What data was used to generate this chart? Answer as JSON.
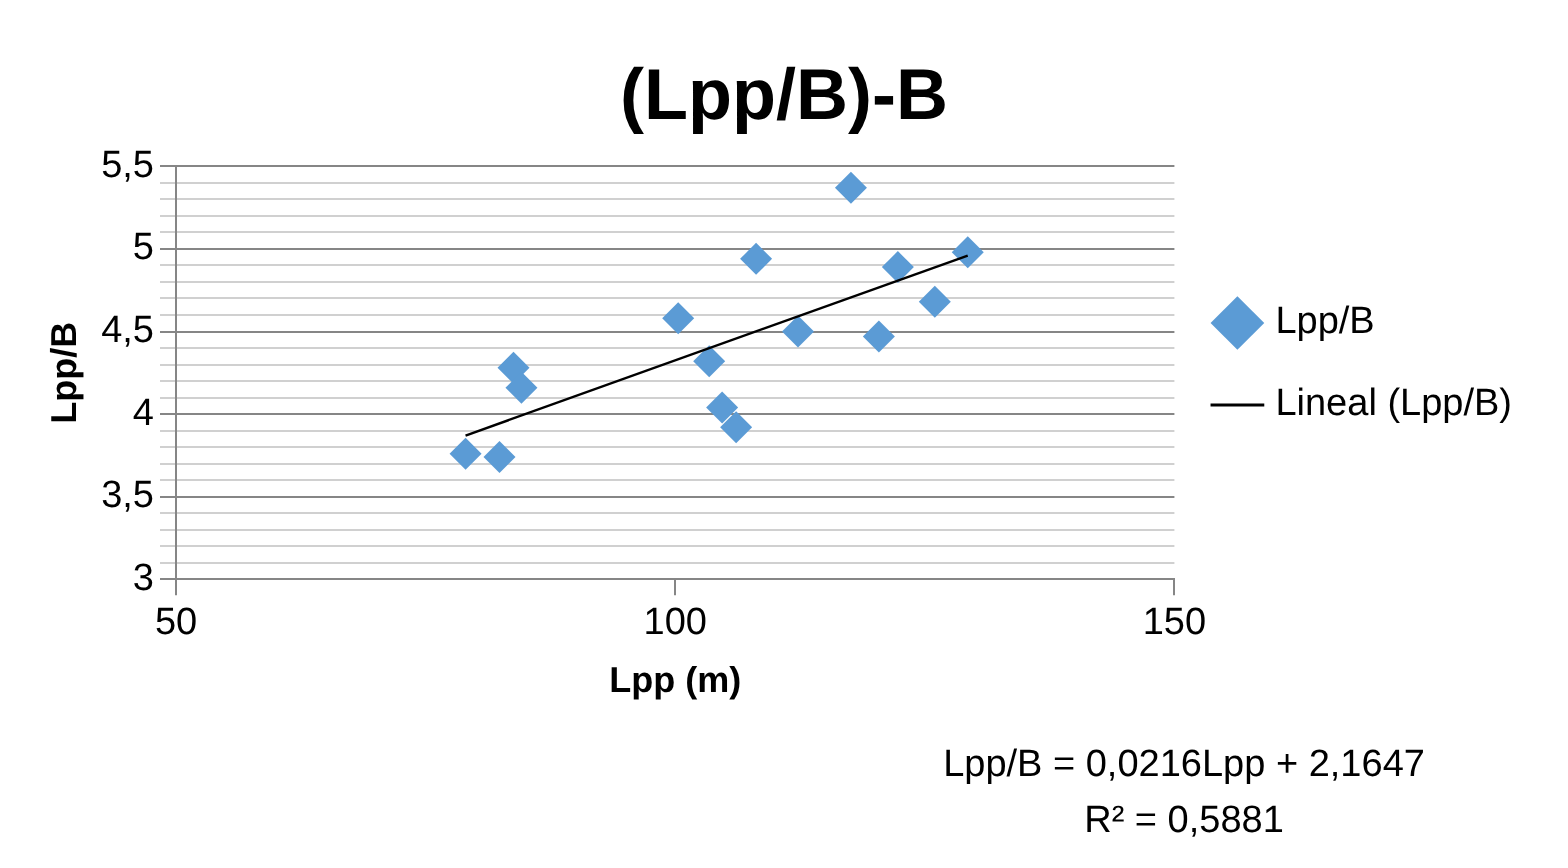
{
  "chart_data": {
    "type": "scatter",
    "title": "(Lpp/B)-B",
    "xlabel": "Lpp (m)",
    "ylabel": "Lpp/B",
    "series": [
      {
        "name": "Lpp/B",
        "type": "scatter",
        "color": "#5b9bd5",
        "marker": "diamond",
        "x": [
          79,
          82.4,
          83.8,
          84.6,
          100.3,
          103.4,
          104.7,
          106.1,
          108.1,
          112.3,
          117.6,
          120.4,
          122.3,
          126,
          129.3
        ],
        "values": [
          3.76,
          3.74,
          4.28,
          4.16,
          4.58,
          4.32,
          4.04,
          3.92,
          4.94,
          4.5,
          5.37,
          4.47,
          4.89,
          4.68,
          4.98
        ]
      },
      {
        "name": "Lineal (Lpp/B)",
        "type": "line",
        "color": "#000000",
        "marker": "none",
        "line_style": "solid",
        "x": [
          79,
          129.3
        ],
        "values": [
          3.87,
          4.96
        ]
      }
    ],
    "xlim": [
      50,
      150
    ],
    "xticks": [
      50,
      100,
      150
    ],
    "ylim": [
      3,
      5.5
    ],
    "yticks": [
      {
        "value": 3,
        "label": "3"
      },
      {
        "value": 3.1,
        "label": null
      },
      {
        "value": 3.2,
        "label": null
      },
      {
        "value": 3.3,
        "label": null
      },
      {
        "value": 3.4,
        "label": null
      },
      {
        "value": 3.5,
        "label": "3,5"
      },
      {
        "value": 3.6,
        "label": null
      },
      {
        "value": 3.7,
        "label": null
      },
      {
        "value": 3.8,
        "label": null
      },
      {
        "value": 3.9,
        "label": null
      },
      {
        "value": 4,
        "label": "4"
      },
      {
        "value": 4.1,
        "label": null
      },
      {
        "value": 4.2,
        "label": null
      },
      {
        "value": 4.3,
        "label": null
      },
      {
        "value": 4.4,
        "label": null
      },
      {
        "value": 4.5,
        "label": "4,5"
      },
      {
        "value": 4.6,
        "label": null
      },
      {
        "value": 4.7,
        "label": null
      },
      {
        "value": 4.8,
        "label": null
      },
      {
        "value": 4.9,
        "label": null
      },
      {
        "value": 5,
        "label": "5"
      },
      {
        "value": 5.1,
        "label": null
      },
      {
        "value": 5.2,
        "label": null
      },
      {
        "value": 5.3,
        "label": null
      },
      {
        "value": 5.4,
        "label": null
      },
      {
        "value": 5.5,
        "label": "5,5"
      }
    ],
    "grid": "y",
    "legend": "right",
    "annotations": [
      "Lpp/B = 0,0216Lpp + 2,1647",
      "R² = 0,5881"
    ]
  }
}
